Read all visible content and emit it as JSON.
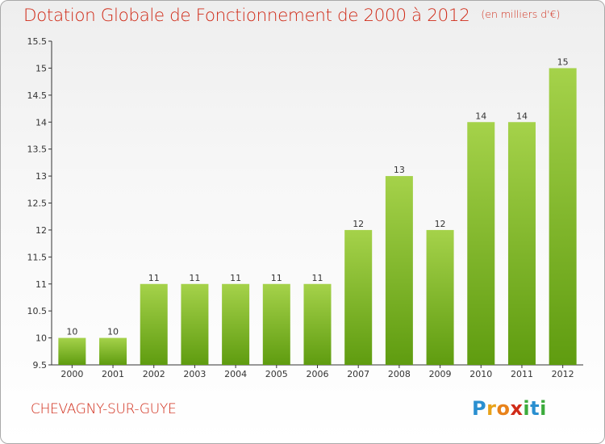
{
  "title": "Dotation Globale de Fonctionnement de 2000 à 2012",
  "unit_note": "(en milliers d'€)",
  "commune": "CHEVAGNY-SUR-GUYE",
  "logo": {
    "letters": [
      "P",
      "r",
      "o",
      "x",
      "i",
      "t",
      "i"
    ],
    "colors": [
      "#2a8fd0",
      "#e8a21a",
      "#e8821a",
      "#d02b18",
      "#3cab3c",
      "#2a8fd0",
      "#3cab3c"
    ]
  },
  "colors": {
    "title": "#d02b18",
    "bar_light": "#a5d24a",
    "bar_dark": "#5f9c10"
  },
  "chart_data": {
    "type": "bar",
    "title": "Dotation Globale de Fonctionnement de 2000 à 2012",
    "subtitle": "(en milliers d'€)",
    "categories": [
      "2000",
      "2001",
      "2002",
      "2003",
      "2004",
      "2005",
      "2006",
      "2007",
      "2008",
      "2009",
      "2010",
      "2011",
      "2012"
    ],
    "values": [
      10,
      10,
      11,
      11,
      11,
      11,
      11,
      12,
      13,
      12,
      14,
      14,
      15
    ],
    "value_labels": [
      "10",
      "10",
      "11",
      "11",
      "11",
      "11",
      "11",
      "12",
      "13",
      "12",
      "14",
      "14",
      "15"
    ],
    "yticks": [
      "9.5",
      "10",
      "10.5",
      "11",
      "11.5",
      "12",
      "12.5",
      "13",
      "13.5",
      "14",
      "14.5",
      "15",
      "15.5"
    ],
    "ylim": [
      9.5,
      15.5
    ],
    "xlabel": "",
    "ylabel": "",
    "grid": false
  }
}
